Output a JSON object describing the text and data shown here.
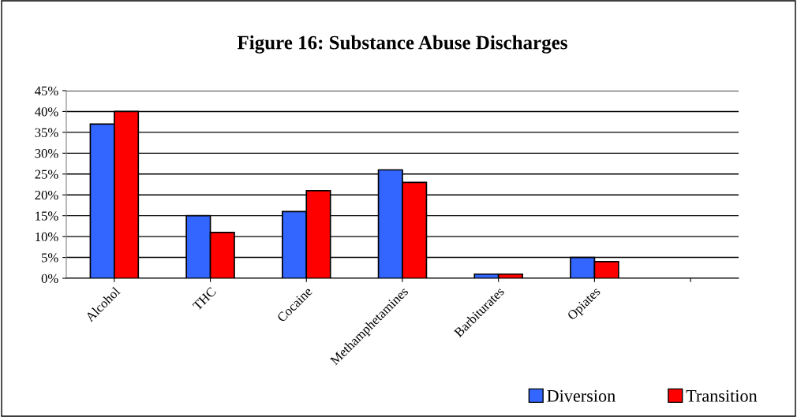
{
  "chart_data": {
    "type": "bar",
    "title": "Figure 16: Substance Abuse Discharges",
    "categories": [
      "Alcohol",
      "THC",
      "Cocaine",
      "Methamphetamines",
      "Barbiturates",
      "Opiates",
      null
    ],
    "series": [
      {
        "name": "Diversion",
        "color": "#3366ff",
        "values": [
          37,
          15,
          16,
          26,
          1,
          5,
          null
        ]
      },
      {
        "name": "Transition",
        "color": "#ff0000",
        "values": [
          40,
          11,
          21,
          23,
          1,
          4,
          null
        ]
      }
    ],
    "ylim": [
      0,
      45
    ],
    "yticks": [
      {
        "value": 0,
        "label": "0%"
      },
      {
        "value": 5,
        "label": "5%"
      },
      {
        "value": 10,
        "label": "10%"
      },
      {
        "value": 15,
        "label": "15%"
      },
      {
        "value": 20,
        "label": "20%"
      },
      {
        "value": 25,
        "label": "25%"
      },
      {
        "value": 30,
        "label": "30%"
      },
      {
        "value": 35,
        "label": "35%"
      },
      {
        "value": 40,
        "label": "40%"
      },
      {
        "value": 45,
        "label": "45%"
      }
    ],
    "grid": "y",
    "legend": "bottom right"
  }
}
